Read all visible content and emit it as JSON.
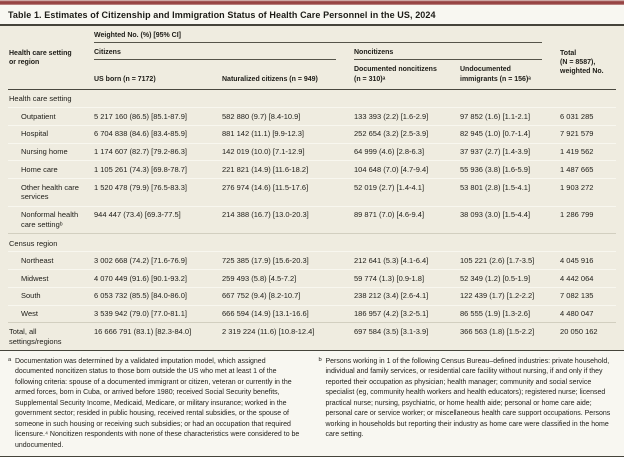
{
  "title": "Table 1. Estimates of Citizenship and Immigration Status of Health Care Personnel in the US, 2024",
  "table": {
    "spanner": "Weighted No. (%) [95% CI]",
    "group_citizens": "Citizens",
    "group_noncitizens": "Noncitizens",
    "col_stub": "Health care setting\nor region",
    "col_us_born": "US born (n = 7172)",
    "col_naturalized": "Naturalized citizens (n = 949)",
    "col_documented": "Documented noncitizens\n(n = 310)ᵃ",
    "col_undocumented": "Undocumented\nimmigrants (n = 156)ᵃ",
    "col_total": "Total\n(N = 8587),\nweighted No.",
    "sections": [
      {
        "header": "Health care setting",
        "rows": [
          [
            "Outpatient",
            "5 217 160 (86.5) [85.1-87.9]",
            "582 880 (9.7) [8.4-10.9]",
            "133 393 (2.2) [1.6-2.9]",
            "97 852 (1.6) [1.1-2.1]",
            "6 031 285"
          ],
          [
            "Hospital",
            "6 704 838 (84.6) [83.4-85.9]",
            "881 142 (11.1) [9.9-12.3]",
            "252 654 (3.2) [2.5-3.9]",
            "82 945 (1.0) [0.7-1.4]",
            "7 921 579"
          ],
          [
            "Nursing home",
            "1 174 607 (82.7) [79.2-86.3]",
            "142 019 (10.0) [7.1-12.9]",
            "64 999 (4.6) [2.8-6.3]",
            "37 937 (2.7) [1.4-3.9]",
            "1 419 562"
          ],
          [
            "Home care",
            "1 105 261 (74.3) [69.8-78.7]",
            "221 821 (14.9) [11.6-18.2]",
            "104 648 (7.0) [4.7-9.4]",
            "55 936 (3.8) [1.6-5.9]",
            "1 487 665"
          ],
          [
            "Other health care services",
            "1 520 478 (79.9) [76.5-83.3]",
            "276 974 (14.6) [11.5-17.6]",
            "52 019 (2.7) [1.4-4.1]",
            "53 801 (2.8) [1.5-4.1]",
            "1 903 272"
          ],
          [
            "Nonformal health care settingᵇ",
            "944 447 (73.4) [69.3-77.5]",
            "214 388 (16.7) [13.0-20.3]",
            "89 871 (7.0) [4.6-9.4]",
            "38 093 (3.0) [1.5-4.4]",
            "1 286 799"
          ]
        ]
      },
      {
        "header": "Census region",
        "rows": [
          [
            "Northeast",
            "3 002 668 (74.2) [71.6-76.9]",
            "725 385 (17.9) [15.6-20.3]",
            "212 641 (5.3) [4.1-6.4]",
            "105 221 (2.6) [1.7-3.5]",
            "4 045 916"
          ],
          [
            "Midwest",
            "4 070 449 (91.6) [90.1-93.2]",
            "259 493 (5.8) [4.5-7.2]",
            "59 774 (1.3) [0.9-1.8]",
            "52 349 (1.2) [0.5-1.9]",
            "4 442 064"
          ],
          [
            "South",
            "6 053 732 (85.5) [84.0-86.0]",
            "667 752 (9.4) [8.2-10.7]",
            "238 212 (3.4) [2.6-4.1]",
            "122 439 (1.7) [1.2-2.2]",
            "7 082 135"
          ],
          [
            "West",
            "3 539 942 (79.0) [77.0-81.1]",
            "666 594 (14.9) [13.1-16.6]",
            "186 957 (4.2) [3.2-5.1]",
            "86 555 (1.9) [1.3-2.6]",
            "4 480 047"
          ]
        ]
      }
    ],
    "total_row": [
      "Total, all settings/regions",
      "16 666 791 (83.1) [82.3-84.0]",
      "2 319 224 (11.6) [10.8-12.4]",
      "697 584 (3.5) [3.1-3.9]",
      "366 563 (1.8) [1.5-2.2]",
      "20 050 162"
    ]
  },
  "footnotes": {
    "a_marker": "a",
    "a_text": "Documentation was determined by a validated imputation model, which assigned documented noncitizen status to those born outside the US who met at least 1 of the following criteria: spouse of a documented immigrant or citizen, veteran or currently in the armed forces, born in Cuba, or arrived before 1980; received Social Security benefits, Supplemental Security Income, Medicaid, Medicare, or military insurance; worked in the government sector; resided in public housing, received rental subsidies, or the spouse of someone in such housing or receiving such subsidies; or had an occupation that required licensure.⁴ Noncitizen respondents with none of these characteristics were considered to be undocumented.",
    "b_marker": "b",
    "b_text": "Persons working in 1 of the following Census Bureau–defined industries: private household, individual and family services, or residential care facility without nursing, if and only if they reported their occupation as physician; health manager; community and social service specialist (eg, community health workers and health educators); registered nurse; licensed practical nurse; nursing, psychiatric, or home health aide; personal or home care aide; personal care or service worker; or miscellaneous health care support occupations. Persons working in households but reporting their industry as home care were classified in the home care setting."
  }
}
